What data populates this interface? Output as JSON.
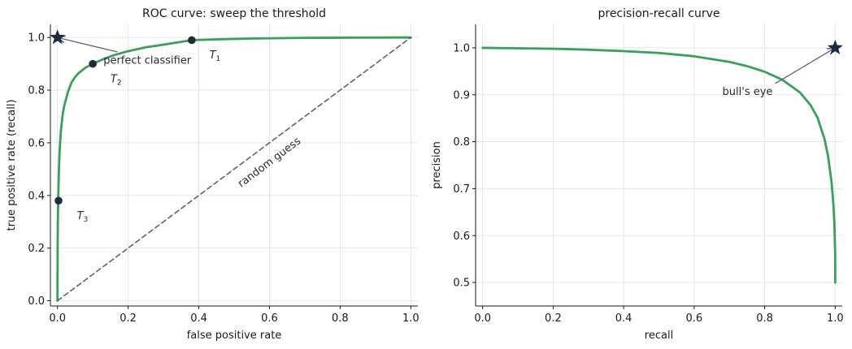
{
  "chart_data": [
    {
      "type": "line",
      "title": "ROC curve: sweep the threshold",
      "xlabel": "false positive rate",
      "ylabel": "true positive rate (recall)",
      "xlim": [
        -0.02,
        1.02
      ],
      "ylim": [
        -0.02,
        1.05
      ],
      "xticks": [
        "0.0",
        "0.2",
        "0.4",
        "0.6",
        "0.8",
        "1.0"
      ],
      "yticks": [
        "0.0",
        "0.2",
        "0.4",
        "0.6",
        "0.8",
        "1.0"
      ],
      "grid": true,
      "series": [
        {
          "color": "#38a05a",
          "x": [
            0,
            0.0005,
            0.001,
            0.002,
            0.004,
            0.006,
            0.01,
            0.015,
            0.02,
            0.03,
            0.04,
            0.05,
            0.06,
            0.08,
            0.1,
            0.13,
            0.16,
            0.2,
            0.25,
            0.3,
            0.38,
            0.45,
            0.55,
            0.65,
            0.75,
            0.85,
            0.95,
            1.0
          ],
          "y": [
            0,
            0.2,
            0.3,
            0.38,
            0.49,
            0.57,
            0.65,
            0.71,
            0.745,
            0.795,
            0.83,
            0.85,
            0.865,
            0.886,
            0.9,
            0.918,
            0.933,
            0.948,
            0.963,
            0.973,
            0.99,
            0.993,
            0.996,
            0.998,
            0.999,
            0.9995,
            1.0,
            1.0
          ]
        },
        {
          "color": "#5a6478",
          "style": "dashed",
          "x": [
            0,
            1
          ],
          "y": [
            0,
            1
          ]
        }
      ],
      "points": [
        {
          "x": 0.38,
          "y": 0.99,
          "label": "T",
          "sub": "1",
          "lx": 0.43,
          "ly": 0.92
        },
        {
          "x": 0.1,
          "y": 0.9,
          "label": "T",
          "sub": "2",
          "lx": 0.15,
          "ly": 0.83
        },
        {
          "x": 0.003,
          "y": 0.38,
          "label": "T",
          "sub": "3",
          "lx": 0.055,
          "ly": 0.31
        }
      ],
      "star": {
        "x": 0.0,
        "y": 1.0,
        "color": "#1f2a3c"
      },
      "annotations": [
        {
          "text": "perfect classifier",
          "x": 0.13,
          "y": 0.9,
          "arrow_to": [
            0.0,
            1.0
          ],
          "arrow_from": [
            0.17,
            0.945
          ]
        },
        {
          "text": "random guess",
          "x": 0.52,
          "y": 0.43,
          "rotate": -37,
          "color": "#5a6478"
        }
      ]
    },
    {
      "type": "line",
      "title": "precision-recall curve",
      "xlabel": "recall",
      "ylabel": "precision",
      "xlim": [
        -0.02,
        1.02
      ],
      "ylim": [
        0.45,
        1.05
      ],
      "xticks": [
        "0.0",
        "0.2",
        "0.4",
        "0.6",
        "0.8",
        "1.0"
      ],
      "yticks": [
        "0.5",
        "0.6",
        "0.7",
        "0.8",
        "0.9",
        "1.0"
      ],
      "grid": true,
      "series": [
        {
          "color": "#38a05a",
          "x": [
            0,
            0.1,
            0.2,
            0.3,
            0.4,
            0.5,
            0.6,
            0.7,
            0.75,
            0.8,
            0.85,
            0.9,
            0.93,
            0.95,
            0.97,
            0.98,
            0.99,
            0.995,
            0.998,
            1.0,
            1.0
          ],
          "y": [
            1.0,
            0.999,
            0.998,
            0.996,
            0.993,
            0.989,
            0.982,
            0.97,
            0.961,
            0.949,
            0.932,
            0.905,
            0.878,
            0.851,
            0.805,
            0.768,
            0.712,
            0.665,
            0.62,
            0.56,
            0.5
          ]
        }
      ],
      "star": {
        "x": 1.0,
        "y": 1.0,
        "color": "#1f2a3c"
      },
      "annotations": [
        {
          "text": "bull's eye",
          "x": 0.68,
          "y": 0.9,
          "arrow_to": [
            1.0,
            1.0
          ],
          "arrow_from": [
            0.83,
            0.924
          ]
        }
      ]
    }
  ]
}
